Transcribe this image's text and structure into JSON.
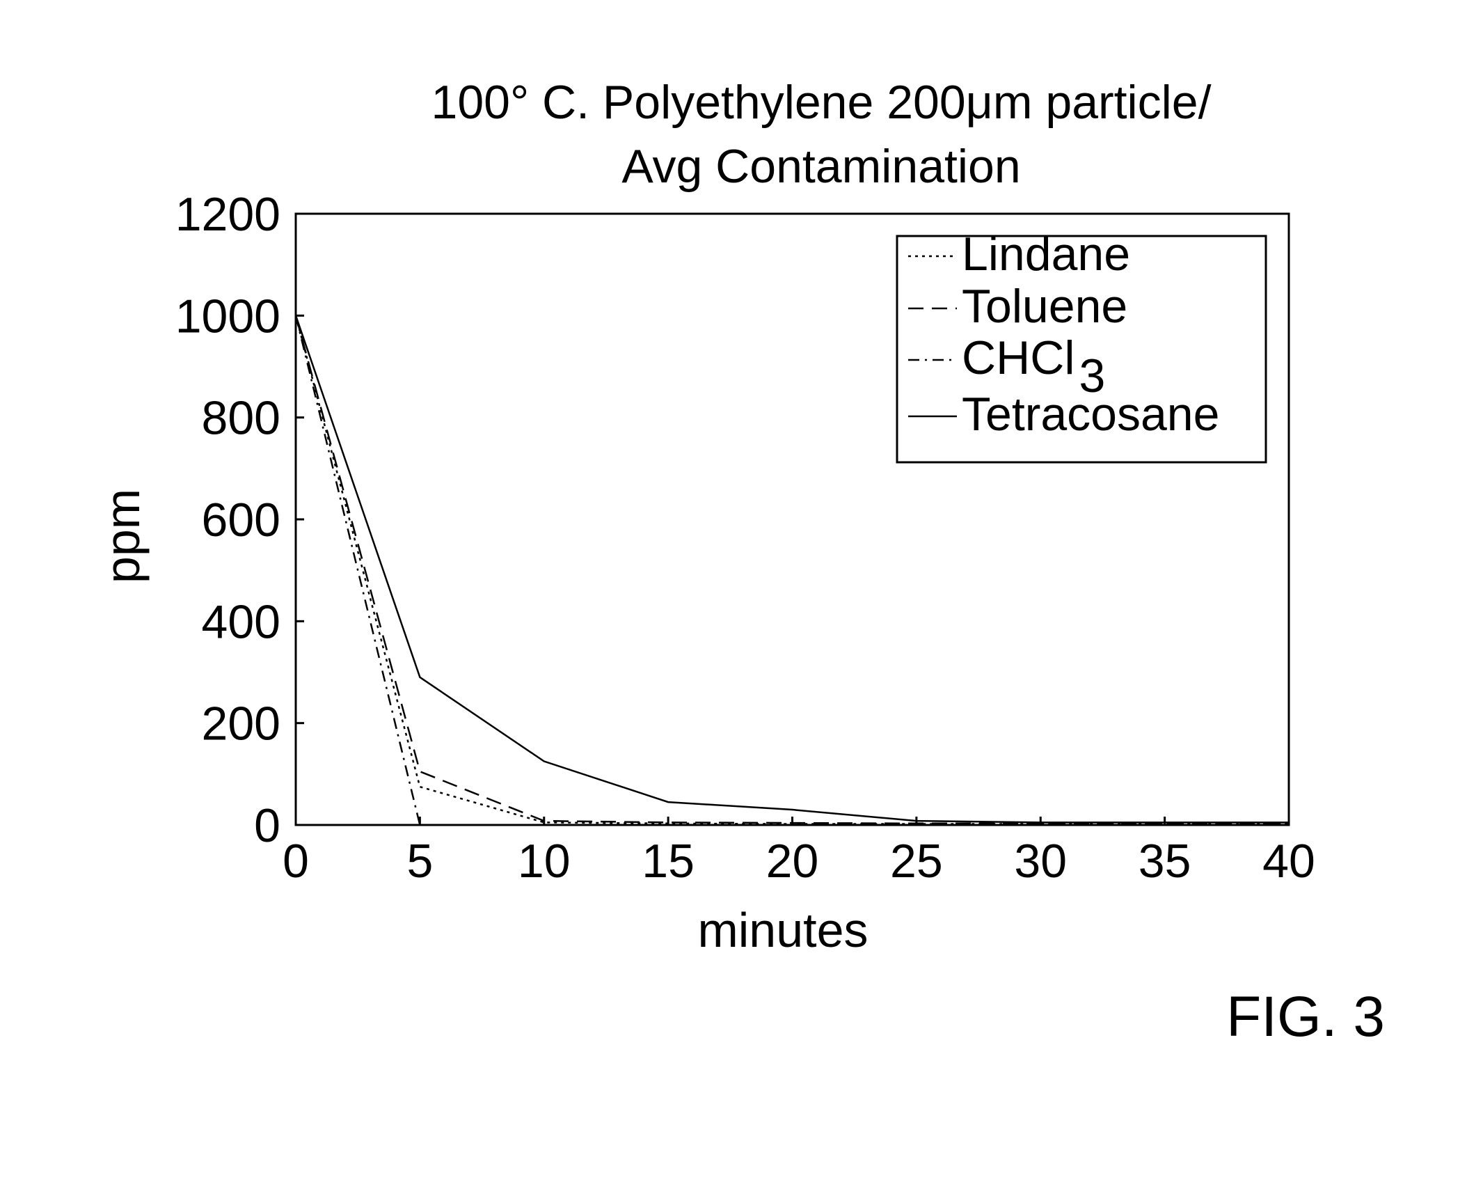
{
  "figure_label": "FIG. 3",
  "chart_data": {
    "type": "line",
    "title_lines": [
      "100° C. Polyethylene 200μm particle/",
      "Avg Contamination"
    ],
    "xlabel": "minutes",
    "ylabel": "ppm",
    "xlim": [
      0,
      40
    ],
    "ylim": [
      0,
      1200
    ],
    "xticks": [
      0,
      5,
      10,
      15,
      20,
      25,
      30,
      35,
      40
    ],
    "yticks": [
      0,
      200,
      400,
      600,
      800,
      1000,
      1200
    ],
    "grid": false,
    "legend_position": "top-right",
    "series": [
      {
        "name": "Lindane",
        "style": "dotted",
        "x": [
          0,
          5,
          10,
          15,
          20,
          25,
          30,
          35,
          40
        ],
        "y": [
          1000,
          75,
          5,
          3,
          2,
          2,
          2,
          2,
          2
        ]
      },
      {
        "name": "Toluene",
        "style": "dashed",
        "x": [
          0,
          5,
          10,
          15,
          20,
          25,
          30,
          35,
          40
        ],
        "y": [
          1000,
          105,
          8,
          5,
          4,
          3,
          3,
          3,
          3
        ]
      },
      {
        "name": "CHCl3",
        "display_name": "CHCl",
        "subscript": "3",
        "style": "dashdot",
        "x": [
          0,
          5
        ],
        "y": [
          1000,
          0
        ]
      },
      {
        "name": "Tetracosane",
        "style": "solid",
        "x": [
          0,
          5,
          10,
          15,
          20,
          25,
          30,
          35,
          40
        ],
        "y": [
          1000,
          290,
          125,
          45,
          30,
          8,
          5,
          5,
          5
        ]
      }
    ]
  }
}
